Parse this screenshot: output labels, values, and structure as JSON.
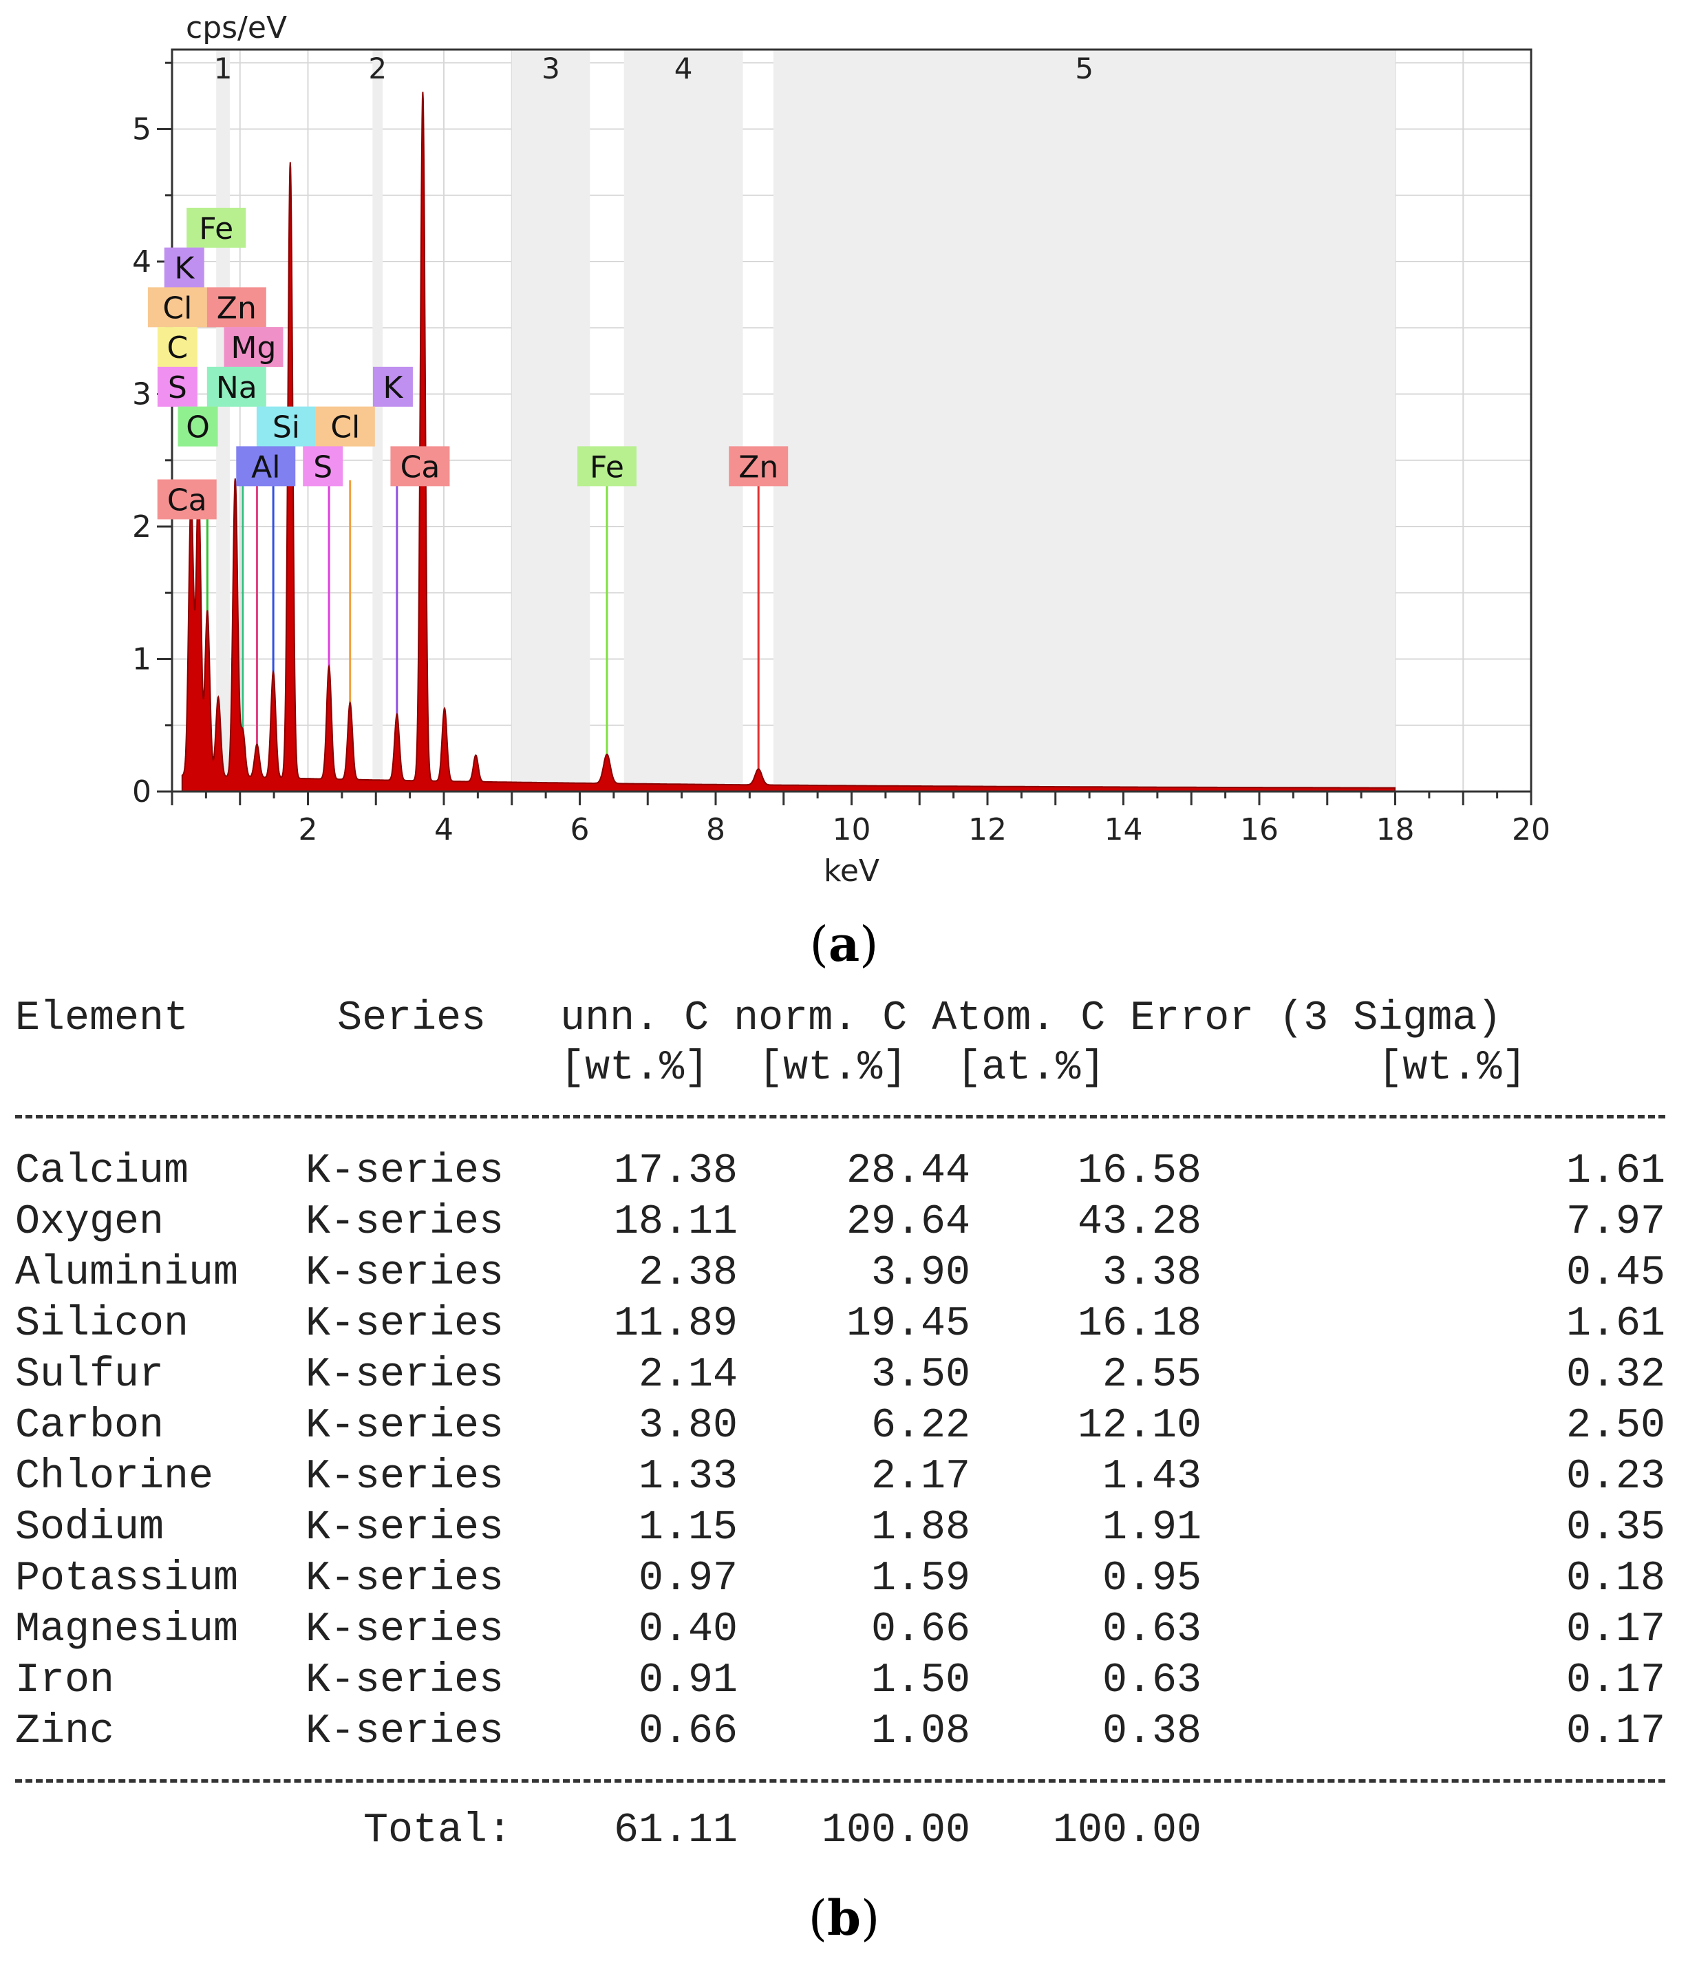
{
  "captions": {
    "a": "a",
    "b": "b"
  },
  "chart_data": {
    "type": "line",
    "xlabel": "keV",
    "ylabel": "cps/eV",
    "xlim": [
      0,
      20
    ],
    "ylim": [
      0,
      5.6
    ],
    "x_ticks": [
      "2",
      "4",
      "6",
      "8",
      "10",
      "12",
      "14",
      "16",
      "18",
      "20"
    ],
    "y_ticks": [
      "0",
      "1",
      "2",
      "3",
      "4",
      "5"
    ],
    "regions": [
      {
        "label": "1",
        "x0": 0.65,
        "x1": 0.85
      },
      {
        "label": "2",
        "x0": 2.95,
        "x1": 3.1
      },
      {
        "label": "3",
        "x0": 5.0,
        "x1": 6.15
      },
      {
        "label": "4",
        "x0": 6.65,
        "x1": 8.4
      },
      {
        "label": "5",
        "x0": 8.85,
        "x1": 18.0
      }
    ],
    "spectrum_peaks": [
      {
        "x": 0.28,
        "y": 2.1
      },
      {
        "x": 0.39,
        "y": 2.2
      },
      {
        "x": 0.52,
        "y": 1.25
      },
      {
        "x": 0.68,
        "y": 0.6
      },
      {
        "x": 0.93,
        "y": 2.25
      },
      {
        "x": 1.04,
        "y": 0.35
      },
      {
        "x": 1.25,
        "y": 0.25
      },
      {
        "x": 1.49,
        "y": 0.8
      },
      {
        "x": 1.74,
        "y": 4.65
      },
      {
        "x": 2.31,
        "y": 0.85
      },
      {
        "x": 2.62,
        "y": 0.58
      },
      {
        "x": 3.31,
        "y": 0.5
      },
      {
        "x": 3.69,
        "y": 5.2
      },
      {
        "x": 4.01,
        "y": 0.55
      },
      {
        "x": 4.47,
        "y": 0.2
      },
      {
        "x": 6.4,
        "y": 0.22
      },
      {
        "x": 8.63,
        "y": 0.12
      }
    ],
    "element_lines": [
      {
        "element": "Ca",
        "x": 3.69,
        "color": "#f08080"
      },
      {
        "element": "Fe",
        "x": 6.4,
        "color": "#80e040"
      },
      {
        "element": "Zn",
        "x": 8.63,
        "color": "#e03030"
      },
      {
        "element": "Al",
        "x": 1.49,
        "color": "#3050e0"
      },
      {
        "element": "S",
        "x": 2.31,
        "color": "#e040e0"
      },
      {
        "element": "Si",
        "x": 1.74,
        "color": "#30c0e0"
      },
      {
        "element": "Cl",
        "x": 2.62,
        "color": "#f0a040"
      },
      {
        "element": "K",
        "x": 3.31,
        "color": "#9050e0"
      },
      {
        "element": "Na",
        "x": 1.04,
        "color": "#30c080"
      },
      {
        "element": "Mg",
        "x": 1.25,
        "color": "#e04080"
      },
      {
        "element": "O",
        "x": 0.52,
        "color": "#30c030"
      },
      {
        "element": "C",
        "x": 0.28,
        "color": "#e0e030"
      }
    ],
    "element_labels": [
      {
        "text": "Fe",
        "x": 0.65,
        "y": 4.25,
        "color": "#b8f090"
      },
      {
        "text": "K",
        "x": 0.18,
        "y": 3.95,
        "color": "#c090f0"
      },
      {
        "text": "Cl",
        "x": 0.08,
        "y": 3.65,
        "color": "#f8c890"
      },
      {
        "text": "Zn",
        "x": 0.95,
        "y": 3.65,
        "color": "#f49090"
      },
      {
        "text": "C",
        "x": 0.08,
        "y": 3.35,
        "color": "#f8f090"
      },
      {
        "text": "Mg",
        "x": 1.2,
        "y": 3.35,
        "color": "#f090c8"
      },
      {
        "text": "S",
        "x": 0.08,
        "y": 3.05,
        "color": "#f090f0"
      },
      {
        "text": "Na",
        "x": 0.95,
        "y": 3.05,
        "color": "#90f0c0"
      },
      {
        "text": "K",
        "x": 3.25,
        "y": 3.05,
        "color": "#c090f0"
      },
      {
        "text": "O",
        "x": 0.38,
        "y": 2.75,
        "color": "#90f090"
      },
      {
        "text": "Si",
        "x": 1.68,
        "y": 2.75,
        "color": "#90e8f0"
      },
      {
        "text": "Cl",
        "x": 2.55,
        "y": 2.75,
        "color": "#f8c890"
      },
      {
        "text": "Al",
        "x": 1.38,
        "y": 2.45,
        "color": "#8080f0"
      },
      {
        "text": "S",
        "x": 2.22,
        "y": 2.45,
        "color": "#f090f0"
      },
      {
        "text": "Ca",
        "x": 3.65,
        "y": 2.45,
        "color": "#f49090"
      },
      {
        "text": "Fe",
        "x": 6.4,
        "y": 2.45,
        "color": "#b8f090"
      },
      {
        "text": "Zn",
        "x": 8.63,
        "y": 2.45,
        "color": "#f49090"
      },
      {
        "text": "Ca",
        "x": 0.22,
        "y": 2.2,
        "color": "#f49090"
      }
    ],
    "colors": {
      "spectrum": "#cc0000",
      "background_fill": "#888888",
      "region": "#eeeeee",
      "grid": "#d8d8d8"
    }
  },
  "table": {
    "header_line1": "Element      Series   unn. C norm. C Atom. C Error (3 Sigma)",
    "header_line2": "                      [wt.%]  [wt.%]  [at.%]           [wt.%]",
    "rows": [
      {
        "element": "Calcium",
        "series": "K-series",
        "unn": "17.38",
        "norm": "28.44",
        "atom": "16.58",
        "error": "1.61"
      },
      {
        "element": "Oxygen",
        "series": "K-series",
        "unn": "18.11",
        "norm": "29.64",
        "atom": "43.28",
        "error": "7.97"
      },
      {
        "element": "Aluminium",
        "series": "K-series",
        "unn": "2.38",
        "norm": "3.90",
        "atom": "3.38",
        "error": "0.45"
      },
      {
        "element": "Silicon",
        "series": "K-series",
        "unn": "11.89",
        "norm": "19.45",
        "atom": "16.18",
        "error": "1.61"
      },
      {
        "element": "Sulfur",
        "series": "K-series",
        "unn": "2.14",
        "norm": "3.50",
        "atom": "2.55",
        "error": "0.32"
      },
      {
        "element": "Carbon",
        "series": "K-series",
        "unn": "3.80",
        "norm": "6.22",
        "atom": "12.10",
        "error": "2.50"
      },
      {
        "element": "Chlorine",
        "series": "K-series",
        "unn": "1.33",
        "norm": "2.17",
        "atom": "1.43",
        "error": "0.23"
      },
      {
        "element": "Sodium",
        "series": "K-series",
        "unn": "1.15",
        "norm": "1.88",
        "atom": "1.91",
        "error": "0.35"
      },
      {
        "element": "Potassium",
        "series": "K-series",
        "unn": "0.97",
        "norm": "1.59",
        "atom": "0.95",
        "error": "0.18"
      },
      {
        "element": "Magnesium",
        "series": "K-series",
        "unn": "0.40",
        "norm": "0.66",
        "atom": "0.63",
        "error": "0.17"
      },
      {
        "element": "Iron",
        "series": "K-series",
        "unn": "0.91",
        "norm": "1.50",
        "atom": "0.63",
        "error": "0.17"
      },
      {
        "element": "Zinc",
        "series": "K-series",
        "unn": "0.66",
        "norm": "1.08",
        "atom": "0.38",
        "error": "0.17"
      }
    ],
    "total_label": "Total:",
    "total_unn": "61.11",
    "total_norm": "100.00",
    "total_atom": "100.00"
  }
}
